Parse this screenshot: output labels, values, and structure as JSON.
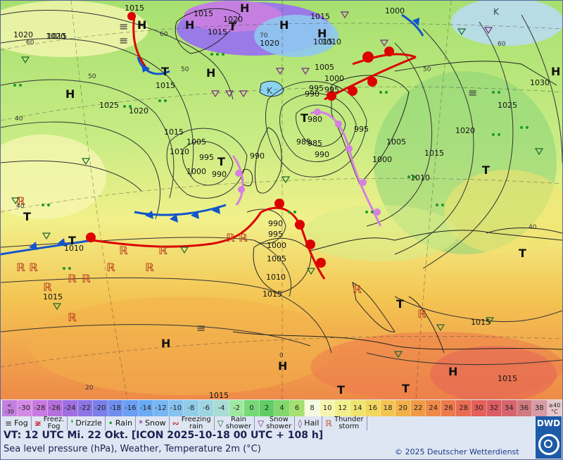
{
  "map": {
    "isobars": [
      "1015",
      "1015",
      "1020",
      "1015",
      "1020",
      "1015",
      "1015",
      "1020",
      "1015",
      "1010",
      "1020",
      "1015",
      "1025",
      "1020",
      "1015",
      "1005",
      "1010",
      "1000",
      "995",
      "990",
      "990",
      "995",
      "1000",
      "990",
      "995",
      "985",
      "990",
      "980",
      "1005",
      "1010",
      "1000",
      "1005",
      "1015",
      "1020",
      "1025",
      "1030",
      "1000",
      "995",
      "985",
      "990",
      "995",
      "1000",
      "1005",
      "1010",
      "1010",
      "1015",
      "1015",
      "1015",
      "1015",
      "1015"
    ],
    "pressure_centres": [
      "H",
      "H",
      "H",
      "H",
      "H",
      "H",
      "H",
      "H",
      "H",
      "H",
      "H",
      "T",
      "T",
      "T",
      "T",
      "T",
      "T",
      "T",
      "T",
      "T",
      "T",
      "T"
    ],
    "regions": [
      "K",
      "K"
    ],
    "weather_key_icons": [
      "fog-icon",
      "freezing-fog-icon",
      "drizzle-icon",
      "rain-icon",
      "snow-icon",
      "freezing-rain-icon",
      "rain-shower-icon",
      "snow-shower-icon",
      "hail-icon",
      "thunderstorm-icon"
    ],
    "latitude_labels": [
      "60",
      "50",
      "40",
      "20",
      "70",
      "60",
      "50",
      "40",
      "60",
      "50",
      "40",
      "0"
    ]
  },
  "scale": {
    "first_label": [
      "<",
      "-30"
    ],
    "steps": [
      "-30",
      "-28",
      "-26",
      "-24",
      "-22",
      "-20",
      "-18",
      "-16",
      "-14",
      "-12",
      "-10",
      "-8",
      "-6",
      "-4",
      "-2",
      "0",
      "2",
      "4",
      "6",
      "8",
      "10",
      "12",
      "14",
      "16",
      "18",
      "20",
      "22",
      "24",
      "26",
      "28",
      "30",
      "32",
      "34",
      "36",
      "38"
    ],
    "last_label": [
      "≥40",
      "°C"
    ],
    "colors": [
      "#c47fe0",
      "#d48be6",
      "#c979e0",
      "#b56fdc",
      "#9f6fe0",
      "#8d75e4",
      "#7a80e8",
      "#6f8fee",
      "#6a9ef2",
      "#6aaaf2",
      "#78b6f2",
      "#86c2f0",
      "#92cce8",
      "#9ed6e0",
      "#a8dcd4",
      "#9ee8a0",
      "#78d878",
      "#60cc66",
      "#82d86a",
      "#a6e070",
      "#f6fbe0",
      "#f6f6b0",
      "#f2f08a",
      "#f0e470",
      "#f2d65e",
      "#f4c452",
      "#f2b04a",
      "#f09a46",
      "#ee8a48",
      "#ec7a4c",
      "#e86c52",
      "#e46058",
      "#dc5c64",
      "#d6666e",
      "#d07a80",
      "#d89aa4",
      "#e6c8cc"
    ]
  },
  "legend": {
    "items": [
      {
        "icon": "fog-icon",
        "glyph": "≡",
        "label": "Fog"
      },
      {
        "icon": "freezing-fog-icon",
        "glyph": "≆",
        "label": "Freez.\nFog"
      },
      {
        "icon": "drizzle-icon",
        "glyph": "❜",
        "label": "Drizzle"
      },
      {
        "icon": "rain-icon",
        "glyph": "•",
        "label": "Rain"
      },
      {
        "icon": "snow-icon",
        "glyph": "*",
        "label": "Snow"
      },
      {
        "icon": "freezing-rain-icon",
        "glyph": "∾",
        "label": "Freezing\nrain"
      },
      {
        "icon": "rain-shower-icon",
        "glyph": "▽",
        "label": "Rain\nshower"
      },
      {
        "icon": "snow-shower-icon",
        "glyph": "▽",
        "label": "Snow\nshower"
      },
      {
        "icon": "hail-icon",
        "glyph": "◊",
        "label": "Hail"
      },
      {
        "icon": "thunderstorm-icon",
        "glyph": "ℝ",
        "label": "Thunder\nstorm"
      }
    ]
  },
  "footer": {
    "valid_time": "VT: 12 UTC Mi.  22 Okt. [ICON 2025-10-18  00 UTC + 108 h]",
    "subtitle": "Sea level pressure (hPa), Weather, Temperature 2m (°C)",
    "copyright": "© 2025 Deutscher Wetterdienst",
    "logo": "DWD"
  }
}
